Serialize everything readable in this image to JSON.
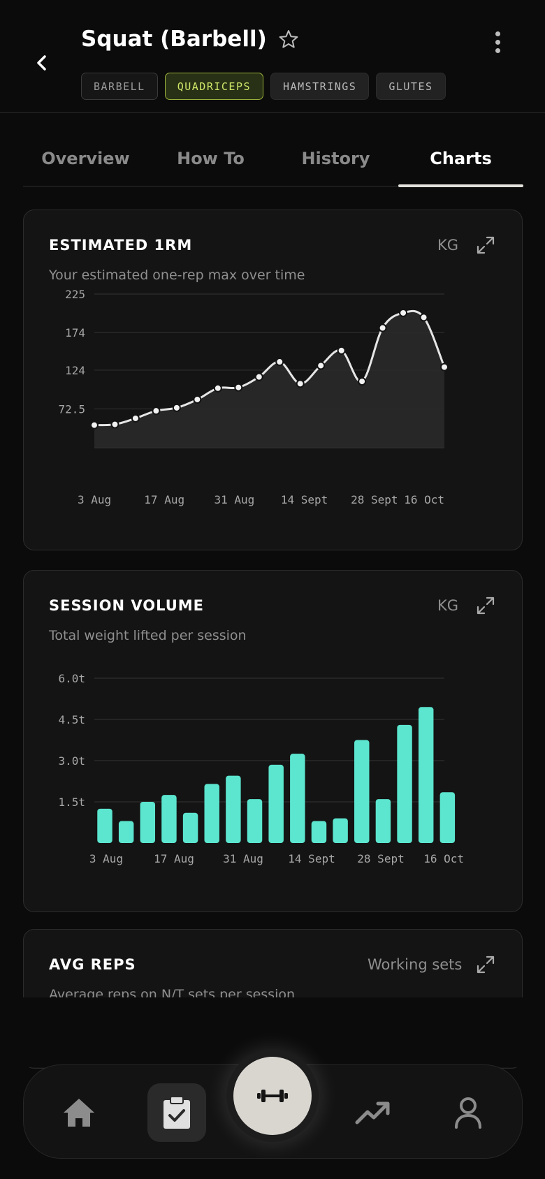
{
  "header": {
    "title": "Squat (Barbell)",
    "tags": [
      {
        "label": "BARBELL",
        "kind": "neutral"
      },
      {
        "label": "QUADRICEPS",
        "kind": "primary"
      },
      {
        "label": "HAMSTRINGS",
        "kind": "secondary"
      },
      {
        "label": "GLUTES",
        "kind": "secondary"
      }
    ],
    "icons": {
      "back": "chevron-left-icon",
      "favorite": "star-outline-icon",
      "more": "more-vertical-icon"
    }
  },
  "tabs": [
    {
      "label": "Overview",
      "active": false
    },
    {
      "label": "How To",
      "active": false
    },
    {
      "label": "History",
      "active": false
    },
    {
      "label": "Charts",
      "active": true
    }
  ],
  "cards": {
    "one_rm": {
      "title": "ESTIMATED 1RM",
      "unit": "KG",
      "subtitle": "Your estimated one-rep max over time"
    },
    "volume": {
      "title": "SESSION VOLUME",
      "unit": "KG",
      "subtitle": "Total weight lifted per session"
    },
    "reps": {
      "title": "AVG REPS",
      "unit": "Working sets",
      "subtitle": "Average reps on N/T sets per session"
    }
  },
  "chart_data": [
    {
      "type": "line",
      "title": "ESTIMATED 1RM",
      "subtitle": "Your estimated one-rep max over time",
      "xlabel": "",
      "ylabel": "",
      "x_tick_labels": [
        "3 Aug",
        "17 Aug",
        "31 Aug",
        "14 Sept",
        "28 Sept",
        "16 Oct"
      ],
      "y_tick_labels": [
        "225",
        "174",
        "124",
        "72.5"
      ],
      "ylim": [
        21,
        225
      ],
      "grid": true,
      "fill": true,
      "series": [
        {
          "values": [
            51,
            52,
            60,
            70,
            74,
            85,
            100,
            101,
            115,
            135,
            106,
            130,
            150,
            109,
            180,
            200,
            194,
            128
          ]
        }
      ],
      "colors": {
        "line": "#e6e6e6",
        "fill": "#2a2a2a",
        "point": "#f2f2f2"
      }
    },
    {
      "type": "bar",
      "title": "SESSION VOLUME",
      "subtitle": "Total weight lifted per session",
      "xlabel": "",
      "ylabel": "",
      "x_tick_labels": [
        "3 Aug",
        "17 Aug",
        "31 Aug",
        "14 Sept",
        "28 Sept",
        "16 Oct"
      ],
      "y_tick_labels": [
        "6.0t",
        "4.5t",
        "3.0t",
        "1.5t"
      ],
      "ylim": [
        0,
        6
      ],
      "grid": true,
      "series": [
        {
          "values": [
            1.25,
            0.8,
            1.5,
            1.75,
            1.1,
            2.15,
            2.45,
            1.6,
            2.85,
            3.25,
            0.8,
            0.9,
            3.75,
            1.6,
            4.3,
            4.95,
            1.85
          ]
        }
      ],
      "colors": {
        "bar": "#5ce6cf"
      }
    }
  ],
  "nav": {
    "items": [
      "home-icon",
      "clipboard-check-icon",
      "dumbbell-icon",
      "trending-up-icon",
      "user-icon"
    ],
    "active": "clipboard-check-icon",
    "colors": {
      "inactive": "#8c8c8c",
      "active": "#e0e0e0",
      "fab": "#d9d6d0"
    }
  }
}
